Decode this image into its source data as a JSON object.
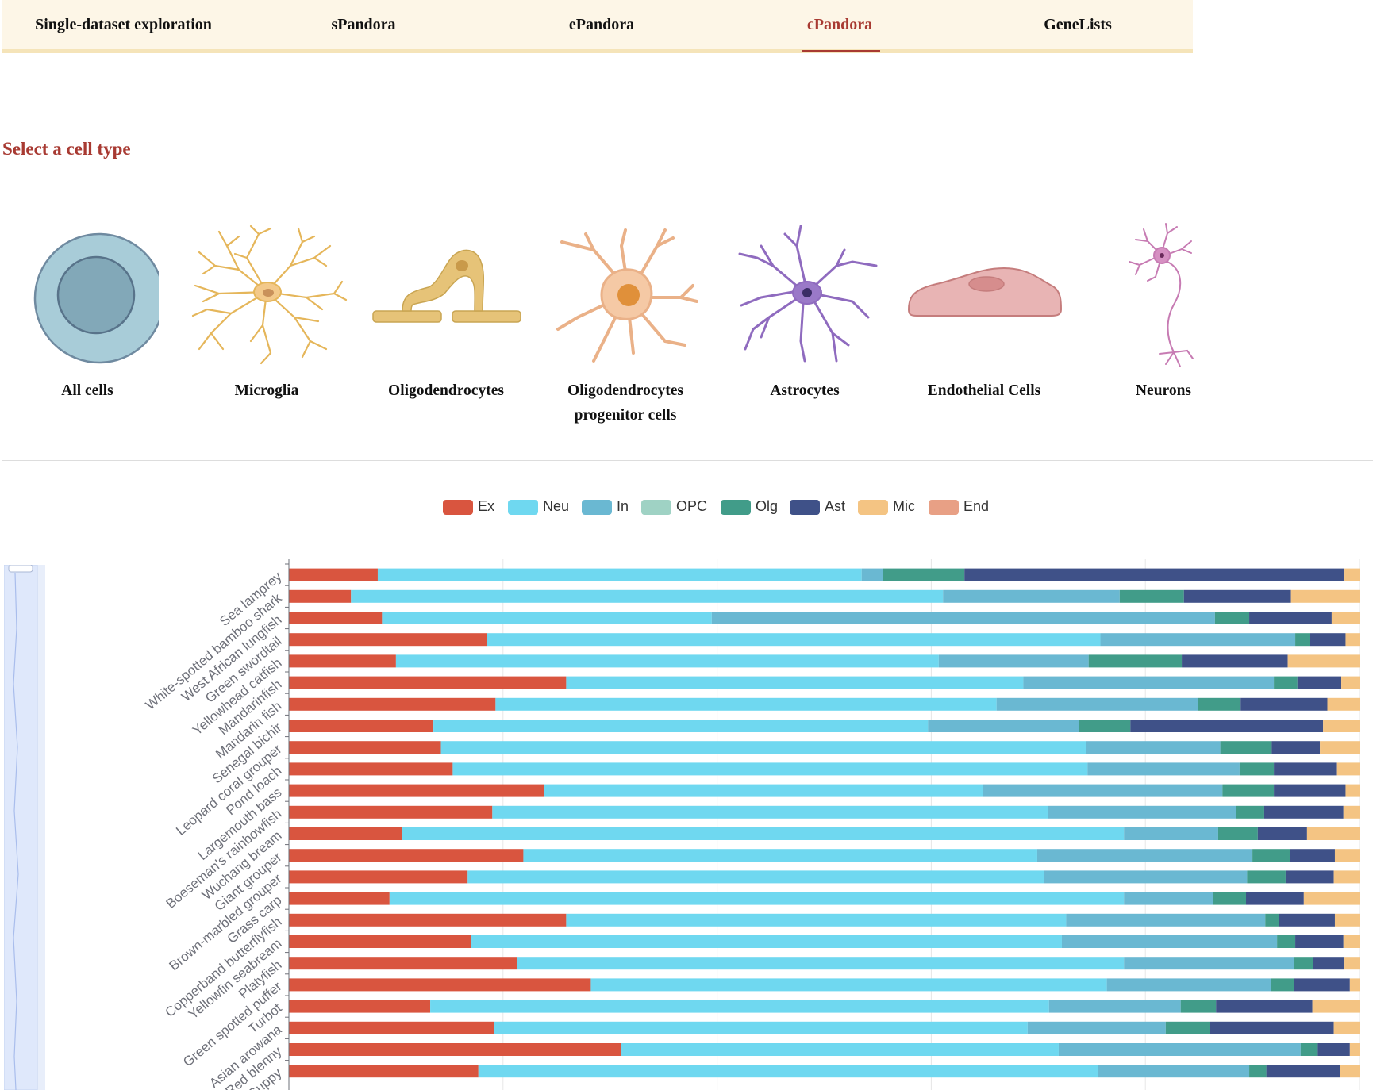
{
  "nav": {
    "tabs": [
      {
        "label": "Single-dataset exploration",
        "active": false
      },
      {
        "label": "sPandora",
        "active": false
      },
      {
        "label": "ePandora",
        "active": false
      },
      {
        "label": "cPandora",
        "active": true
      },
      {
        "label": "GeneLists",
        "active": false
      }
    ],
    "active_color": "#a83a32",
    "background": "#fdf6e7"
  },
  "section_title": "Select a cell type",
  "cell_types": [
    {
      "label": "All cells",
      "icon": "all-cells-icon"
    },
    {
      "label": "Microglia",
      "icon": "microglia-icon"
    },
    {
      "label": "Oligodendrocytes",
      "icon": "oligodendrocyte-icon"
    },
    {
      "label": "Oligodendrocytes progenitor cells",
      "icon": "opc-icon"
    },
    {
      "label": "Astrocytes",
      "icon": "astrocyte-icon"
    },
    {
      "label": "Endothelial Cells",
      "icon": "endothelial-cell-icon"
    },
    {
      "label": "Neurons",
      "icon": "neuron-icon"
    }
  ],
  "chart_data": {
    "type": "bar",
    "orientation": "horizontal",
    "stacked": true,
    "normalized": true,
    "xlim": [
      0,
      1
    ],
    "grid": true,
    "legend_position": "top-center",
    "legend": [
      "Ex",
      "Neu",
      "In",
      "OPC",
      "Olg",
      "Ast",
      "Mic",
      "End"
    ],
    "colors": {
      "Ex": "#d9553f",
      "Neu": "#6fd8f0",
      "In": "#6ab8d2",
      "OPC": "#9fd2c4",
      "Olg": "#419c89",
      "Ast": "#3f5188",
      "Mic": "#f4c483",
      "End": "#e8a085"
    },
    "categories": [
      "Sea lamprey",
      "White-spotted bamboo shark",
      "West African lungfish",
      "Green swordtail",
      "Yellowhead catfish",
      "Mandarinfish",
      "Mandarin fish",
      "Senegal bichir",
      "Leopard coral grouper",
      "Pond loach",
      "Largemouth bass",
      "Boeseman's rainbowfish",
      "Wuchang bream",
      "Giant grouper",
      "Brown-marbled grouper",
      "Grass carp",
      "Copperband butterflyfish",
      "Yellowfin seabream",
      "Platyfish",
      "Green spotted puffer",
      "Turbot",
      "Asian arowana",
      "Red blenny",
      "Guppy"
    ],
    "series": [
      {
        "name": "Ex",
        "values": [
          0.083,
          0.058,
          0.087,
          0.185,
          0.1,
          0.259,
          0.193,
          0.135,
          0.142,
          0.153,
          0.238,
          0.19,
          0.106,
          0.219,
          0.167,
          0.094,
          0.259,
          0.17,
          0.213,
          0.282,
          0.132,
          0.192,
          0.31,
          0.177
        ]
      },
      {
        "name": "Neu",
        "values": [
          0.452,
          0.553,
          0.308,
          0.573,
          0.507,
          0.427,
          0.468,
          0.462,
          0.603,
          0.593,
          0.41,
          0.519,
          0.674,
          0.48,
          0.538,
          0.686,
          0.467,
          0.552,
          0.567,
          0.482,
          0.578,
          0.498,
          0.409,
          0.579
        ]
      },
      {
        "name": "In",
        "values": [
          0.02,
          0.165,
          0.47,
          0.182,
          0.14,
          0.234,
          0.188,
          0.141,
          0.125,
          0.142,
          0.224,
          0.176,
          0.088,
          0.201,
          0.19,
          0.083,
          0.186,
          0.201,
          0.159,
          0.153,
          0.123,
          0.129,
          0.226,
          0.141
        ]
      },
      {
        "name": "OPC",
        "values": [
          0,
          0,
          0,
          0,
          0,
          0,
          0,
          0,
          0,
          0,
          0,
          0,
          0,
          0,
          0,
          0,
          0,
          0,
          0,
          0,
          0,
          0,
          0,
          0
        ]
      },
      {
        "name": "Olg",
        "values": [
          0.076,
          0.06,
          0.032,
          0.014,
          0.087,
          0.022,
          0.04,
          0.048,
          0.048,
          0.032,
          0.048,
          0.026,
          0.037,
          0.035,
          0.036,
          0.031,
          0.013,
          0.017,
          0.018,
          0.022,
          0.033,
          0.041,
          0.016,
          0.016
        ]
      },
      {
        "name": "Ast",
        "values": [
          0.355,
          0.1,
          0.077,
          0.033,
          0.099,
          0.041,
          0.081,
          0.18,
          0.045,
          0.059,
          0.067,
          0.074,
          0.046,
          0.042,
          0.045,
          0.054,
          0.052,
          0.045,
          0.029,
          0.052,
          0.09,
          0.116,
          0.03,
          0.069
        ]
      },
      {
        "name": "Mic",
        "values": [
          0.014,
          0.064,
          0.026,
          0.013,
          0.067,
          0.017,
          0.03,
          0.034,
          0.037,
          0.021,
          0.013,
          0.015,
          0.049,
          0.023,
          0.024,
          0.052,
          0.023,
          0.015,
          0.014,
          0.009,
          0.044,
          0.024,
          0.009,
          0.018
        ]
      },
      {
        "name": "End",
        "values": [
          0,
          0,
          0,
          0,
          0,
          0,
          0,
          0,
          0,
          0,
          0,
          0,
          0,
          0,
          0,
          0,
          0,
          0,
          0,
          0,
          0,
          0,
          0,
          0
        ]
      }
    ]
  }
}
